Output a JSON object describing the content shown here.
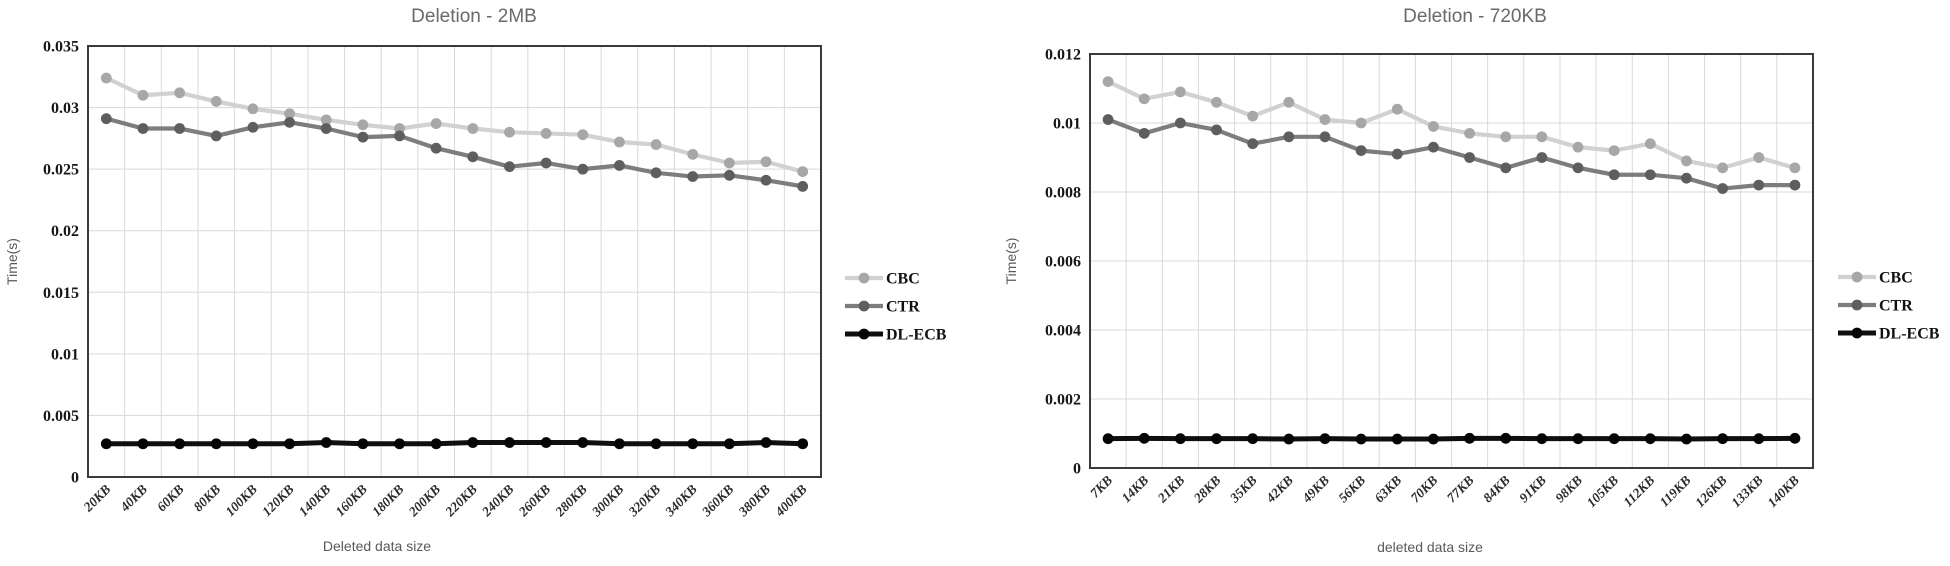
{
  "page": {
    "background": "#ffffff"
  },
  "colors": {
    "grid": "#d9d9d9",
    "plot_border": "#3a3a3a",
    "title_text": "#696969",
    "axis_title_text": "#595959",
    "tick_text": "#161616"
  },
  "legend": {
    "labels": [
      "CBC",
      "CTR",
      "DL-ECB"
    ]
  },
  "chart_data": [
    {
      "type": "line",
      "title": "Deletion - 2MB",
      "xlabel": "Deleted data size",
      "ylabel": "Time(s)",
      "ylim": [
        0,
        0.035
      ],
      "ytick_step": 0.005,
      "ytick_labels": [
        "0",
        "0.005",
        "0.01",
        "0.015",
        "0.02",
        "0.025",
        "0.03",
        "0.035"
      ],
      "grid": true,
      "legend_position": "right",
      "categories": [
        "20KB",
        "40KB",
        "60KB",
        "80KB",
        "100KB",
        "120KB",
        "140KB",
        "160KB",
        "180KB",
        "200KB",
        "220KB",
        "240KB",
        "260KB",
        "280KB",
        "300KB",
        "320KB",
        "340KB",
        "360KB",
        "380KB",
        "400KB"
      ],
      "series": [
        {
          "name": "CBC",
          "line_color": "#d2d0d0",
          "marker_color": "#a8a6a6",
          "values": [
            0.0324,
            0.031,
            0.0312,
            0.0305,
            0.0299,
            0.0295,
            0.029,
            0.0286,
            0.0283,
            0.0287,
            0.0283,
            0.028,
            0.0279,
            0.0278,
            0.0272,
            0.027,
            0.0262,
            0.0255,
            0.0256,
            0.0248
          ]
        },
        {
          "name": "CTR",
          "line_color": "#7e7c7c",
          "marker_color": "#5f5d5d",
          "values": [
            0.0291,
            0.0283,
            0.0283,
            0.0277,
            0.0284,
            0.0288,
            0.0283,
            0.0276,
            0.0277,
            0.0267,
            0.026,
            0.0252,
            0.0255,
            0.025,
            0.0253,
            0.0247,
            0.0244,
            0.0245,
            0.0241,
            0.0236
          ]
        },
        {
          "name": "DL-ECB",
          "line_color": "#0f0f0f",
          "marker_color": "#050505",
          "values": [
            0.0027,
            0.0027,
            0.0027,
            0.0027,
            0.0027,
            0.0027,
            0.0028,
            0.0027,
            0.0027,
            0.0027,
            0.0028,
            0.0028,
            0.0028,
            0.0028,
            0.0027,
            0.0027,
            0.0027,
            0.0027,
            0.0028,
            0.0027
          ]
        }
      ]
    },
    {
      "type": "line",
      "title": "Deletion - 720KB",
      "xlabel": "deleted data size",
      "ylabel": "Time(s)",
      "ylim": [
        0,
        0.012
      ],
      "ytick_step": 0.002,
      "ytick_labels": [
        "0",
        "0.002",
        "0.004",
        "0.006",
        "0.008",
        "0.01",
        "0.012"
      ],
      "grid": true,
      "legend_position": "right",
      "categories": [
        "7KB",
        "14KB",
        "21KB",
        "28KB",
        "35KB",
        "42KB",
        "49KB",
        "56KB",
        "63KB",
        "70KB",
        "77KB",
        "84KB",
        "91KB",
        "98KB",
        "105KB",
        "112KB",
        "119KB",
        "126KB",
        "133KB",
        "140KB"
      ],
      "series": [
        {
          "name": "CBC",
          "line_color": "#d2d0d0",
          "marker_color": "#a8a6a6",
          "values": [
            0.0112,
            0.0107,
            0.0109,
            0.0106,
            0.0102,
            0.0106,
            0.0101,
            0.01,
            0.0104,
            0.0099,
            0.0097,
            0.0096,
            0.0096,
            0.0093,
            0.0092,
            0.0094,
            0.0089,
            0.0087,
            0.009,
            0.0087
          ]
        },
        {
          "name": "CTR",
          "line_color": "#7e7c7c",
          "marker_color": "#5f5d5d",
          "values": [
            0.0101,
            0.0097,
            0.01,
            0.0098,
            0.0094,
            0.0096,
            0.0096,
            0.0092,
            0.0091,
            0.0093,
            0.009,
            0.0087,
            0.009,
            0.0087,
            0.0085,
            0.0085,
            0.0084,
            0.0081,
            0.0082,
            0.0082
          ]
        },
        {
          "name": "DL-ECB",
          "line_color": "#0f0f0f",
          "marker_color": "#050505",
          "values": [
            0.00085,
            0.00086,
            0.00085,
            0.00085,
            0.00085,
            0.00084,
            0.00085,
            0.00084,
            0.00084,
            0.00084,
            0.00086,
            0.00086,
            0.00085,
            0.00085,
            0.00085,
            0.00085,
            0.00084,
            0.00085,
            0.00085,
            0.00086
          ]
        }
      ]
    }
  ]
}
